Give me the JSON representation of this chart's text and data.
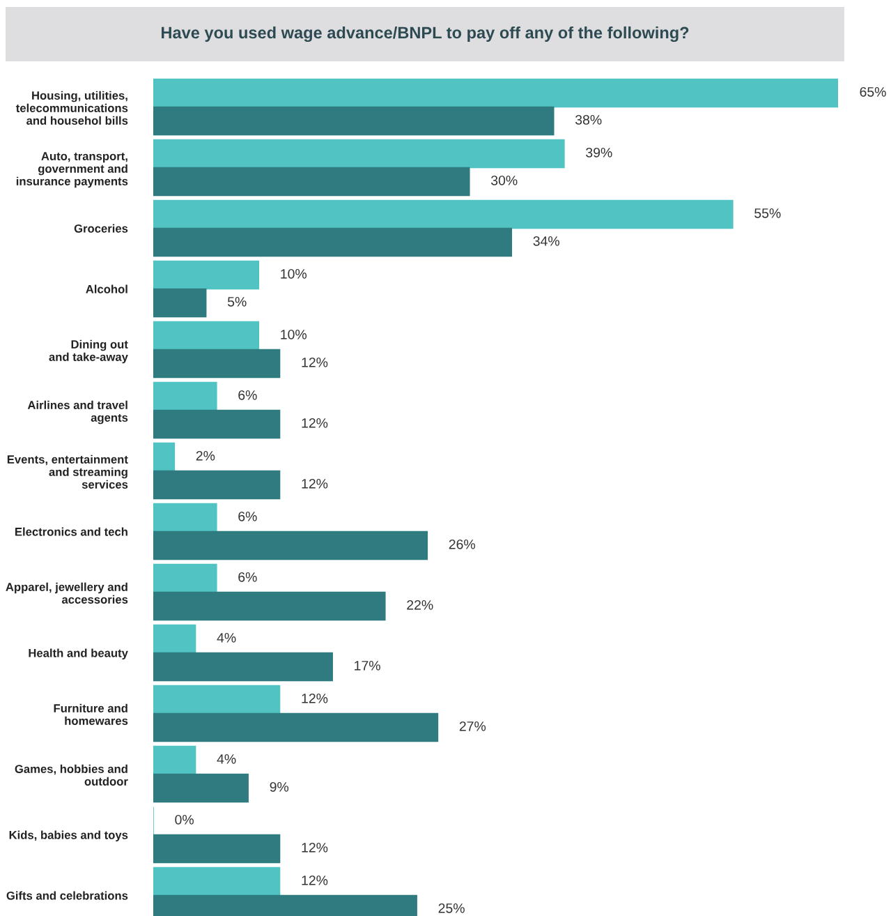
{
  "chart_data": {
    "type": "bar",
    "orientation": "horizontal",
    "title": "Have you used wage advance/BNPL to pay off any of the following?",
    "categories": [
      "Housing, utilities,\ntelecommunications\nand househol bills",
      "Auto, transport,\ngovernment and\ninsurance payments",
      "Groceries",
      "Alcohol",
      "Dining out\nand take-away",
      "Airlines and travel\nagents",
      "Events, entertainment\nand streaming\nservices",
      "Electronics and tech",
      "Apparel, jewellery and\naccessories",
      "Health and beauty",
      "Furniture and\nhomewares",
      "Games, hobbies and\noutdoor",
      "Kids, babies and toys",
      "Gifts and celebrations"
    ],
    "series": [
      {
        "color": "#52c3c3",
        "values": [
          65,
          39,
          55,
          10,
          10,
          6,
          2,
          6,
          6,
          4,
          12,
          4,
          0,
          12
        ],
        "value_labels": [
          "65%",
          "39%",
          "55%",
          "10%",
          "10%",
          "6%",
          "2%",
          "6%",
          "6%",
          "4%",
          "12%",
          "4%",
          "0%",
          "12%"
        ]
      },
      {
        "color": "#2f7b80",
        "values": [
          38,
          30,
          34,
          5,
          12,
          12,
          12,
          26,
          22,
          17,
          27,
          9,
          12,
          25
        ],
        "value_labels": [
          "38%",
          "30%",
          "34%",
          "5%",
          "12%",
          "12%",
          "12%",
          "26%",
          "22%",
          "17%",
          "27%",
          "9%",
          "12%",
          "25%"
        ]
      }
    ],
    "grid": false,
    "legend": false
  }
}
